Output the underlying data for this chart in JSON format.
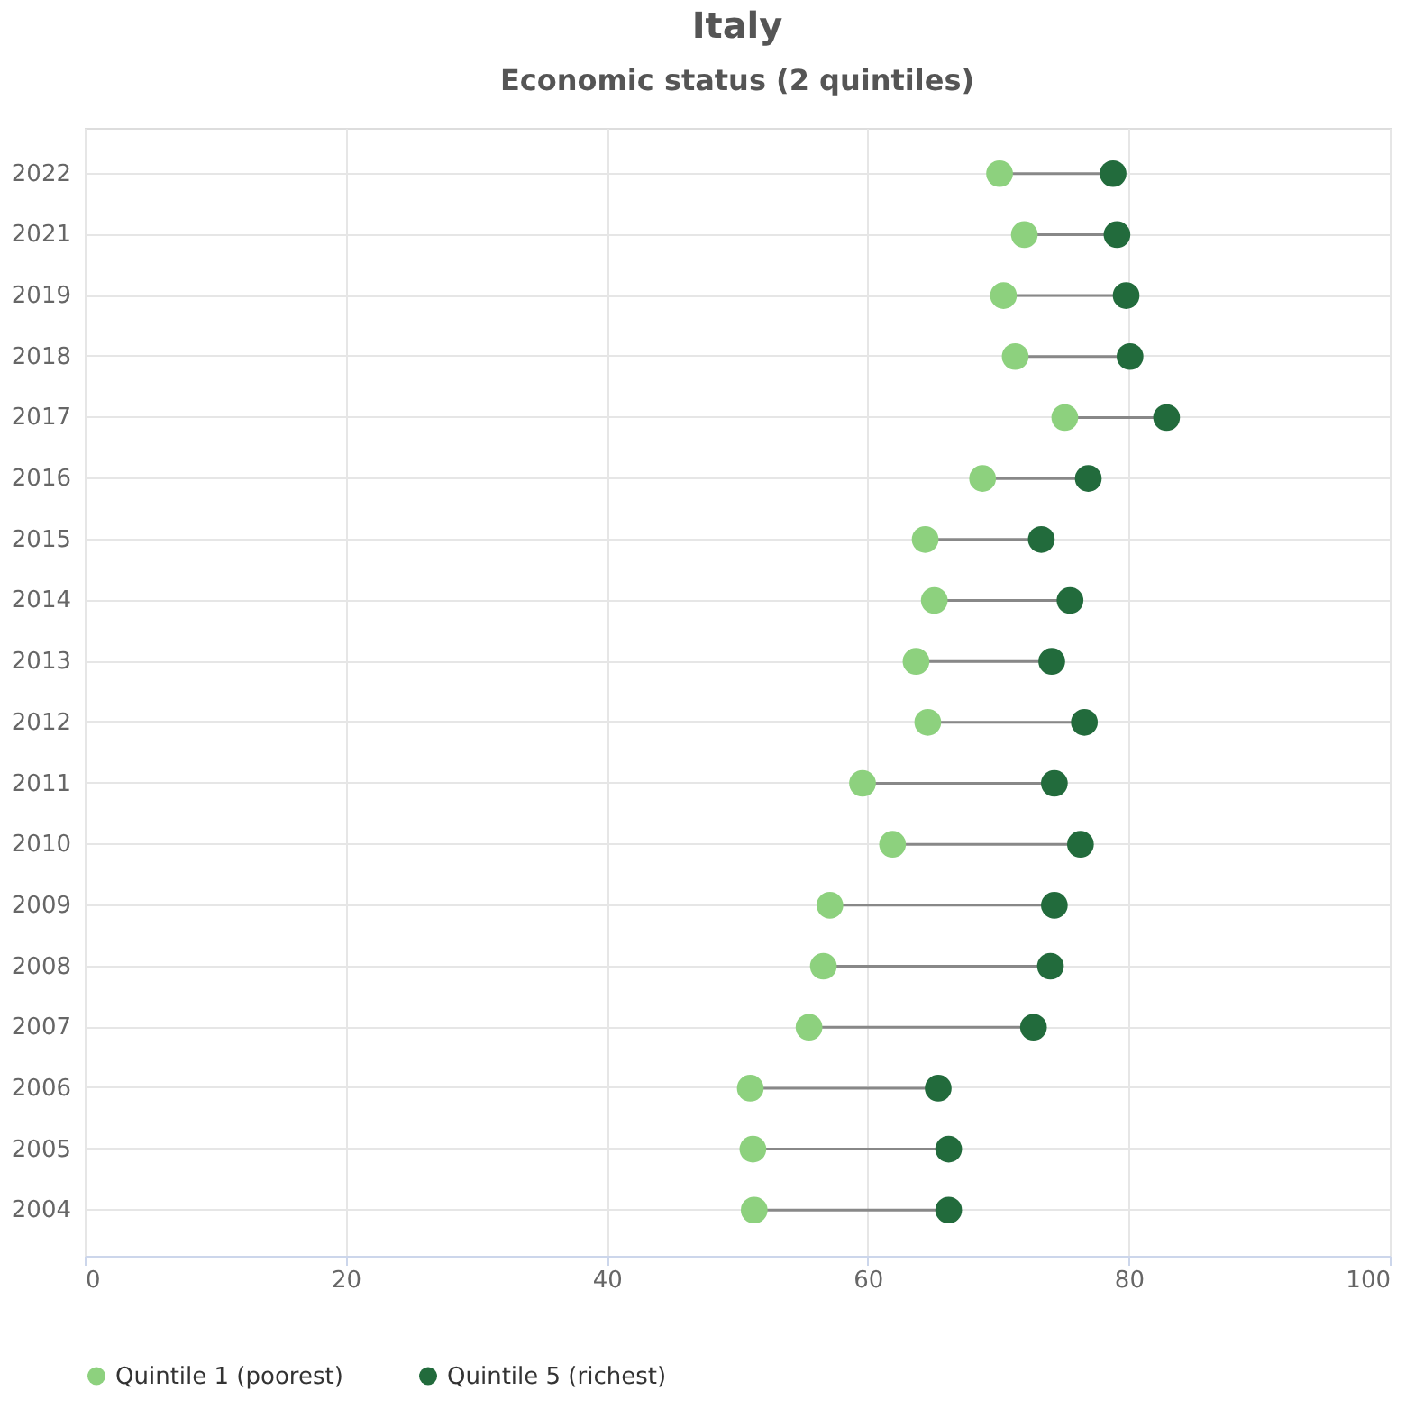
{
  "chart_data": {
    "type": "scatter",
    "orientation": "horizontal",
    "title": "Italy",
    "subtitle": "Economic status (2 quintiles)",
    "categories": [
      "2022",
      "2021",
      "2019",
      "2018",
      "2017",
      "2016",
      "2015",
      "2014",
      "2013",
      "2012",
      "2011",
      "2010",
      "2009",
      "2008",
      "2007",
      "2006",
      "2005",
      "2004"
    ],
    "series": [
      {
        "name": "Quintile 1 (poorest)",
        "color": "#8dd17e",
        "values": [
          70.1,
          72.0,
          70.4,
          71.3,
          75.1,
          68.8,
          64.4,
          65.1,
          63.7,
          64.6,
          59.6,
          61.9,
          57.1,
          56.6,
          55.5,
          51.0,
          51.2,
          51.3
        ]
      },
      {
        "name": "Quintile 5 (richest)",
        "color": "#226b3c",
        "values": [
          78.8,
          79.1,
          79.8,
          80.1,
          82.9,
          76.9,
          73.3,
          75.5,
          74.1,
          76.6,
          74.3,
          76.3,
          74.3,
          74.0,
          72.7,
          65.4,
          66.2,
          66.2
        ]
      }
    ],
    "xlim": [
      0,
      100
    ],
    "xticks": [
      0,
      20,
      40,
      60,
      80,
      100
    ],
    "grid": true,
    "legend": "bottom left",
    "marker": "circle"
  }
}
